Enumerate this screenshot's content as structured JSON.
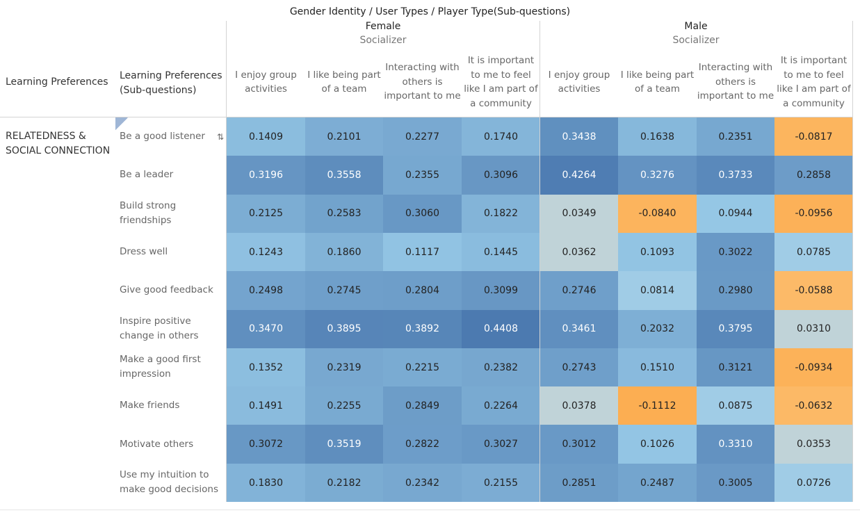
{
  "title": "Gender Identity  /  User Types  /  Player Type(Sub-questions)",
  "row_headers": {
    "col1": "Learning Preferences",
    "col2": "Learning Preferences (Sub-questions)"
  },
  "category": "RELATEDNESS & SOCIAL CONNECTION",
  "chart_data": {
    "type": "heatmap",
    "title": "Gender Identity  /  User Types  /  Player Type(Sub-questions)",
    "groups": [
      {
        "gender": "Female",
        "user_type": "Socializer"
      },
      {
        "gender": "Male",
        "user_type": "Socializer"
      }
    ],
    "columns": [
      "I enjoy group activities",
      "I like being part of a team",
      "Interacting with others is important to me",
      "It is important to me to feel like I am part of a community"
    ],
    "rows": [
      "Be a good listener",
      "Be a leader",
      "Build strong friendships",
      "Dress well",
      "Give good feedback",
      "Inspire positive change in others",
      "Make a good first impression",
      "Make friends",
      "Motivate others",
      "Use my intuition to make good decisions"
    ],
    "values": [
      [
        "0.1409",
        "0.2101",
        "0.2277",
        "0.1740",
        "0.3438",
        "0.1638",
        "0.2351",
        "-0.0817"
      ],
      [
        "0.3196",
        "0.3558",
        "0.2355",
        "0.3096",
        "0.4264",
        "0.3276",
        "0.3733",
        "0.2858"
      ],
      [
        "0.2125",
        "0.2583",
        "0.3060",
        "0.1822",
        "0.0349",
        "-0.0840",
        "0.0944",
        "-0.0956"
      ],
      [
        "0.1243",
        "0.1860",
        "0.1117",
        "0.1445",
        "0.0362",
        "0.1093",
        "0.3022",
        "0.0785"
      ],
      [
        "0.2498",
        "0.2745",
        "0.2804",
        "0.3099",
        "0.2746",
        "0.0814",
        "0.2980",
        "-0.0588"
      ],
      [
        "0.3470",
        "0.3895",
        "0.3892",
        "0.4408",
        "0.3461",
        "0.2032",
        "0.3795",
        "0.0310"
      ],
      [
        "0.1352",
        "0.2319",
        "0.2215",
        "0.2382",
        "0.2743",
        "0.1510",
        "0.3121",
        "-0.0934"
      ],
      [
        "0.1491",
        "0.2255",
        "0.2849",
        "0.2264",
        "0.0378",
        "-0.1112",
        "0.0875",
        "-0.0632"
      ],
      [
        "0.3072",
        "0.3519",
        "0.2822",
        "0.3027",
        "0.3012",
        "0.1026",
        "0.3310",
        "0.0353"
      ],
      [
        "0.1830",
        "0.2182",
        "0.2342",
        "0.2155",
        "0.2851",
        "0.2487",
        "0.3005",
        "0.0726"
      ]
    ],
    "color_scale": {
      "negative": "#f9a64a",
      "neutral": "#bfd3d8",
      "low": "#a8d0ea",
      "high": "#4b79b0"
    }
  }
}
